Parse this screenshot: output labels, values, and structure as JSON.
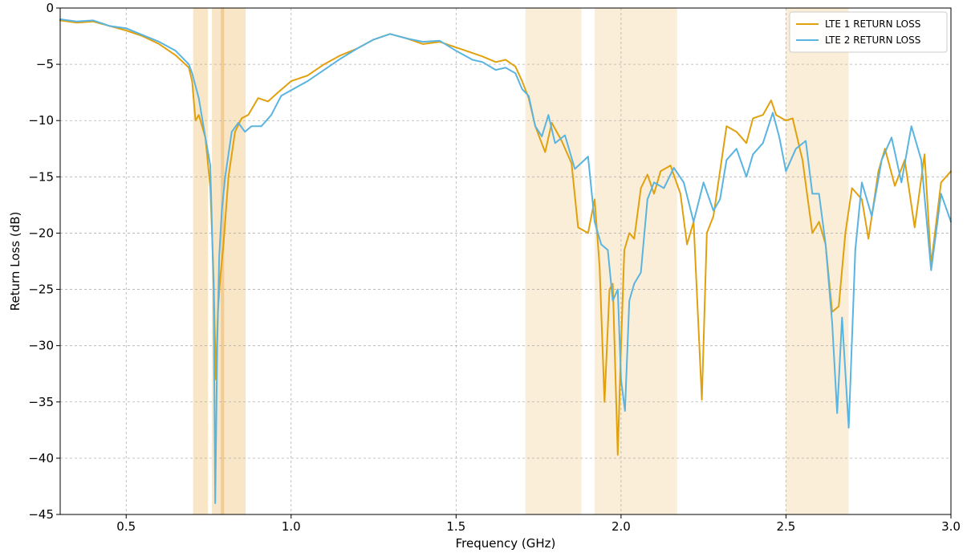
{
  "chart_data": {
    "type": "line",
    "title": "",
    "xlabel": "Frequency (GHz)",
    "ylabel": "Return Loss (dB)",
    "xlim": [
      0.3,
      3.0
    ],
    "ylim": [
      -45,
      0
    ],
    "x_ticks": [
      0.5,
      1.0,
      1.5,
      2.0,
      2.5,
      3.0
    ],
    "x_tick_labels": [
      "0.5",
      "1.0",
      "1.5",
      "2.0",
      "2.5",
      "3.0"
    ],
    "y_ticks": [
      0,
      -5,
      -10,
      -15,
      -20,
      -25,
      -30,
      -35,
      -40,
      -45
    ],
    "y_tick_labels": [
      "0",
      "−5",
      "−10",
      "−15",
      "−20",
      "−25",
      "−30",
      "−35",
      "−40",
      "−45"
    ],
    "grid": true,
    "legend_position": "top-right",
    "bands": [
      {
        "x": [
          0.703,
          0.748
        ],
        "color": "#f5deb3",
        "opacity": 0.75
      },
      {
        "x": [
          0.76,
          0.862
        ],
        "color": "#f5deb3",
        "opacity": 0.75
      },
      {
        "x": [
          0.787,
          0.797
        ],
        "color": "#f0c080",
        "opacity": 0.7
      },
      {
        "x": [
          1.71,
          1.88
        ],
        "color": "#f5deb3",
        "opacity": 0.5
      },
      {
        "x": [
          1.92,
          2.17
        ],
        "color": "#f5deb3",
        "opacity": 0.5
      },
      {
        "x": [
          2.5,
          2.69
        ],
        "color": "#f5deb3",
        "opacity": 0.5
      }
    ],
    "series": [
      {
        "name": "LTE 1 RETURN LOSS",
        "color": "#e1a10e",
        "x": [
          0.3,
          0.35,
          0.4,
          0.45,
          0.5,
          0.55,
          0.6,
          0.65,
          0.69,
          0.7,
          0.71,
          0.72,
          0.74,
          0.755,
          0.765,
          0.772,
          0.778,
          0.785,
          0.795,
          0.81,
          0.83,
          0.85,
          0.87,
          0.9,
          0.93,
          0.96,
          1.0,
          1.05,
          1.1,
          1.15,
          1.2,
          1.25,
          1.3,
          1.35,
          1.4,
          1.45,
          1.5,
          1.55,
          1.58,
          1.62,
          1.65,
          1.68,
          1.7,
          1.72,
          1.74,
          1.77,
          1.79,
          1.82,
          1.85,
          1.87,
          1.9,
          1.92,
          1.935,
          1.95,
          1.965,
          1.975,
          1.99,
          2.0,
          2.01,
          2.025,
          2.04,
          2.06,
          2.08,
          2.1,
          2.12,
          2.15,
          2.18,
          2.2,
          2.22,
          2.245,
          2.26,
          2.28,
          2.3,
          2.32,
          2.35,
          2.38,
          2.4,
          2.43,
          2.455,
          2.47,
          2.5,
          2.52,
          2.55,
          2.58,
          2.6,
          2.62,
          2.64,
          2.66,
          2.68,
          2.7,
          2.73,
          2.75,
          2.78,
          2.8,
          2.83,
          2.86,
          2.89,
          2.92,
          2.94,
          2.97,
          3.0
        ],
        "y": [
          -1.1,
          -1.3,
          -1.2,
          -1.6,
          -2.0,
          -2.5,
          -3.2,
          -4.2,
          -5.3,
          -6.5,
          -10.0,
          -9.5,
          -11.5,
          -16.0,
          -24.0,
          -33.0,
          -27.0,
          -24.0,
          -21.0,
          -15.0,
          -11.0,
          -9.8,
          -9.5,
          -8.0,
          -8.3,
          -7.5,
          -6.5,
          -6.0,
          -5.0,
          -4.2,
          -3.6,
          -2.8,
          -2.3,
          -2.7,
          -3.2,
          -3.0,
          -3.5,
          -4.0,
          -4.3,
          -4.8,
          -4.6,
          -5.2,
          -6.5,
          -8.0,
          -10.5,
          -12.8,
          -10.2,
          -11.8,
          -13.8,
          -19.5,
          -20.0,
          -17.0,
          -23.0,
          -35.0,
          -25.0,
          -24.5,
          -39.7,
          -30.0,
          -21.5,
          -20.0,
          -20.5,
          -16.0,
          -14.8,
          -16.5,
          -14.5,
          -14.0,
          -16.5,
          -21.0,
          -19.0,
          -34.8,
          -20.0,
          -18.5,
          -14.5,
          -10.5,
          -11.0,
          -12.0,
          -9.8,
          -9.5,
          -8.2,
          -9.5,
          -10.0,
          -9.8,
          -13.5,
          -20.0,
          -19.0,
          -21.0,
          -27.0,
          -26.5,
          -20.0,
          -16.0,
          -17.0,
          -20.5,
          -14.5,
          -12.5,
          -15.8,
          -13.5,
          -19.5,
          -13.0,
          -22.8,
          -15.5,
          -14.5
        ]
      },
      {
        "name": "LTE 2 RETURN LOSS",
        "color": "#5ab4e0",
        "x": [
          0.3,
          0.35,
          0.4,
          0.45,
          0.5,
          0.55,
          0.6,
          0.65,
          0.69,
          0.7,
          0.72,
          0.74,
          0.755,
          0.765,
          0.77,
          0.776,
          0.782,
          0.79,
          0.8,
          0.82,
          0.84,
          0.86,
          0.88,
          0.91,
          0.94,
          0.97,
          1.0,
          1.05,
          1.1,
          1.15,
          1.2,
          1.25,
          1.3,
          1.35,
          1.4,
          1.45,
          1.5,
          1.55,
          1.58,
          1.62,
          1.65,
          1.68,
          1.7,
          1.72,
          1.74,
          1.76,
          1.78,
          1.8,
          1.83,
          1.86,
          1.9,
          1.92,
          1.94,
          1.96,
          1.975,
          1.99,
          2.0,
          2.012,
          2.025,
          2.04,
          2.06,
          2.08,
          2.1,
          2.13,
          2.16,
          2.19,
          2.22,
          2.25,
          2.28,
          2.3,
          2.32,
          2.35,
          2.38,
          2.4,
          2.43,
          2.46,
          2.48,
          2.5,
          2.53,
          2.56,
          2.58,
          2.6,
          2.62,
          2.64,
          2.655,
          2.67,
          2.69,
          2.71,
          2.73,
          2.76,
          2.79,
          2.82,
          2.85,
          2.88,
          2.91,
          2.94,
          2.97,
          3.0
        ],
        "y": [
          -1.0,
          -1.2,
          -1.1,
          -1.6,
          -1.8,
          -2.4,
          -3.0,
          -3.8,
          -5.0,
          -5.8,
          -8.0,
          -11.5,
          -14.0,
          -25.0,
          -44.0,
          -30.0,
          -22.0,
          -18.0,
          -15.0,
          -11.0,
          -10.2,
          -11.0,
          -10.5,
          -10.5,
          -9.5,
          -7.8,
          -7.3,
          -6.5,
          -5.5,
          -4.5,
          -3.6,
          -2.8,
          -2.3,
          -2.7,
          -3.0,
          -2.9,
          -3.8,
          -4.6,
          -4.8,
          -5.5,
          -5.3,
          -5.8,
          -7.2,
          -7.8,
          -10.5,
          -11.4,
          -9.5,
          -12.0,
          -11.3,
          -14.3,
          -13.2,
          -19.0,
          -21.0,
          -21.5,
          -26.0,
          -25.0,
          -33.0,
          -35.8,
          -26.0,
          -24.5,
          -23.5,
          -17.0,
          -15.5,
          -16.0,
          -14.2,
          -15.5,
          -19.0,
          -15.5,
          -18.0,
          -17.0,
          -13.5,
          -12.5,
          -15.0,
          -13.0,
          -12.0,
          -9.3,
          -11.5,
          -14.5,
          -12.5,
          -11.8,
          -16.5,
          -16.5,
          -21.0,
          -28.0,
          -36.0,
          -27.5,
          -37.3,
          -21.5,
          -15.5,
          -18.5,
          -13.5,
          -11.5,
          -15.5,
          -10.5,
          -13.5,
          -23.3,
          -16.5,
          -19.0
        ]
      }
    ]
  }
}
